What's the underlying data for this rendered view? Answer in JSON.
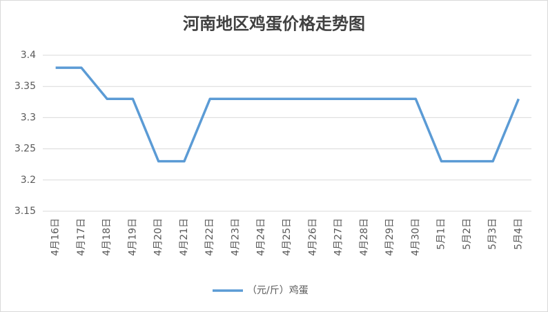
{
  "chart_data": {
    "type": "line",
    "title": "河南地区鸡蛋价格走势图",
    "categories": [
      "4月16日",
      "4月17日",
      "4月18日",
      "4月19日",
      "4月20日",
      "4月21日",
      "4月22日",
      "4月23日",
      "4月24日",
      "4月25日",
      "4月26日",
      "4月27日",
      "4月28日",
      "4月29日",
      "4月30日",
      "5月1日",
      "5月2日",
      "5月3日",
      "5月4日"
    ],
    "series": [
      {
        "name": "（元/斤）鸡蛋",
        "color": "#5b9bd5",
        "values": [
          3.38,
          3.38,
          3.33,
          3.33,
          3.23,
          3.23,
          3.33,
          3.33,
          3.33,
          3.33,
          3.33,
          3.33,
          3.33,
          3.33,
          3.33,
          3.23,
          3.23,
          3.23,
          3.33
        ]
      }
    ],
    "ylim": [
      3.15,
      3.4
    ],
    "yticks": [
      3.4,
      3.35,
      3.3,
      3.25,
      3.2,
      3.15
    ],
    "grid": true,
    "legend": "bottom"
  }
}
